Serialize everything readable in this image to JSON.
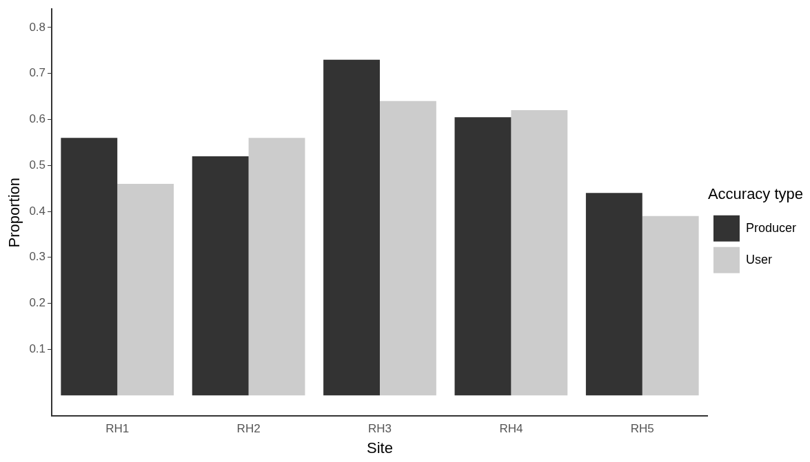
{
  "chart_data": {
    "type": "bar",
    "xlabel": "Site",
    "ylabel": "Proportion",
    "legend_title": "Accuracy type",
    "categories": [
      "RH1",
      "RH2",
      "RH3",
      "RH4",
      "RH5"
    ],
    "series": [
      {
        "name": "Producer",
        "color": "#333333",
        "values": [
          0.56,
          0.52,
          0.73,
          0.605,
          0.44
        ]
      },
      {
        "name": "User",
        "color": "#cccccc",
        "values": [
          0.46,
          0.56,
          0.64,
          0.62,
          0.39
        ]
      }
    ],
    "ylim": [
      -0.045,
      0.84
    ],
    "yticks": [
      0.1,
      0.2,
      0.3,
      0.4,
      0.5,
      0.6,
      0.7,
      0.8
    ],
    "grid": false,
    "legend": "right"
  }
}
